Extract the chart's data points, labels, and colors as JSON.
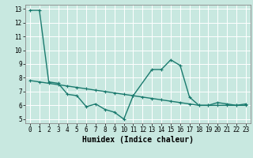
{
  "title": "",
  "xlabel": "Humidex (Indice chaleur)",
  "bg_color": "#c8e8e0",
  "line_color": "#1a7a6e",
  "grid_color": "#ffffff",
  "xlim": [
    -0.5,
    23.5
  ],
  "ylim": [
    4.7,
    13.3
  ],
  "yticks": [
    5,
    6,
    7,
    8,
    9,
    10,
    11,
    12,
    13
  ],
  "xticks": [
    0,
    1,
    2,
    3,
    4,
    5,
    6,
    7,
    8,
    9,
    10,
    11,
    12,
    13,
    14,
    15,
    16,
    17,
    18,
    19,
    20,
    21,
    22,
    23
  ],
  "series1_x": [
    0,
    1,
    2,
    3,
    4,
    5,
    6,
    7,
    8,
    9,
    10,
    11,
    13,
    14,
    15,
    16,
    17,
    18,
    19,
    20,
    21,
    22,
    23
  ],
  "series1_y": [
    12.9,
    12.9,
    7.7,
    7.6,
    6.8,
    6.7,
    5.9,
    6.1,
    5.7,
    5.5,
    5.0,
    6.7,
    8.6,
    8.6,
    9.3,
    8.9,
    6.6,
    6.0,
    6.0,
    6.2,
    6.1,
    6.0,
    6.1
  ],
  "series2_x": [
    0,
    1,
    2,
    3,
    4,
    5,
    6,
    7,
    8,
    9,
    10,
    11,
    12,
    13,
    14,
    15,
    16,
    17,
    18,
    19,
    20,
    21,
    22,
    23
  ],
  "series2_y": [
    7.8,
    7.7,
    7.6,
    7.5,
    7.4,
    7.3,
    7.2,
    7.1,
    7.0,
    6.9,
    6.8,
    6.7,
    6.6,
    6.5,
    6.4,
    6.3,
    6.2,
    6.1,
    6.0,
    6.0,
    6.0,
    6.0,
    6.0,
    6.0
  ],
  "font_family": "monospace",
  "xlabel_fontsize": 7,
  "tick_fontsize": 5.5,
  "linewidth": 1.0,
  "markersize": 3
}
